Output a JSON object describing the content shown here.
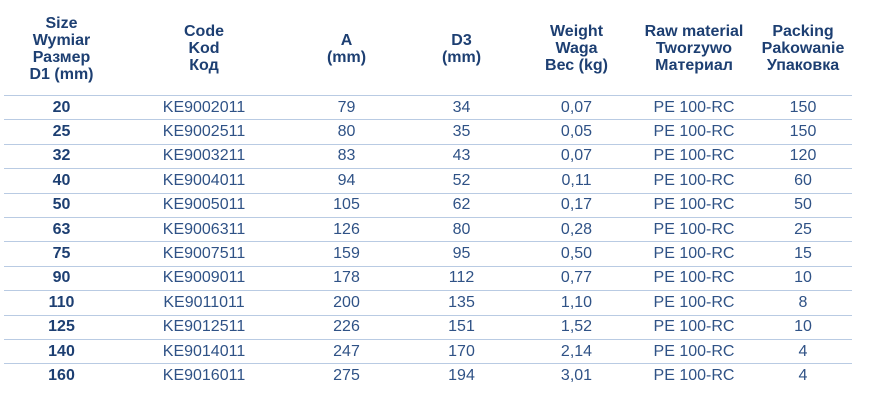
{
  "table": {
    "headers": [
      [
        "Size",
        "Wymiar",
        "Размер",
        "D1 (mm)"
      ],
      [
        "Code",
        "Kod",
        "Код"
      ],
      [
        "A",
        "(mm)"
      ],
      [
        "D3",
        "(mm)"
      ],
      [
        "Weight",
        "Waga",
        "Вес (kg)"
      ],
      [
        "Raw material",
        "Tworzywo",
        "Материал"
      ],
      [
        "Packing",
        "Pakowanie",
        "Упаковка"
      ]
    ],
    "rows": [
      [
        "20",
        "KE9002011",
        "79",
        "34",
        "0,07",
        "PE 100-RC",
        "150"
      ],
      [
        "25",
        "KE9002511",
        "80",
        "35",
        "0,05",
        "PE 100-RC",
        "150"
      ],
      [
        "32",
        "KE9003211",
        "83",
        "43",
        "0,07",
        "PE 100-RC",
        "120"
      ],
      [
        "40",
        "KE9004011",
        "94",
        "52",
        "0,11",
        "PE 100-RC",
        "60"
      ],
      [
        "50",
        "KE9005011",
        "105",
        "62",
        "0,17",
        "PE 100-RC",
        "50"
      ],
      [
        "63",
        "KE9006311",
        "126",
        "80",
        "0,28",
        "PE 100-RC",
        "25"
      ],
      [
        "75",
        "KE9007511",
        "159",
        "95",
        "0,50",
        "PE 100-RC",
        "15"
      ],
      [
        "90",
        "KE9009011",
        "178",
        "112",
        "0,77",
        "PE 100-RC",
        "10"
      ],
      [
        "110",
        "KE9011011",
        "200",
        "135",
        "1,10",
        "PE 100-RC",
        "8"
      ],
      [
        "125",
        "KE9012511",
        "226",
        "151",
        "1,52",
        "PE 100-RC",
        "10"
      ],
      [
        "140",
        "KE9014011",
        "247",
        "170",
        "2,14",
        "PE 100-RC",
        "4"
      ],
      [
        "160",
        "KE9016011",
        "275",
        "194",
        "3,01",
        "PE 100-RC",
        "4"
      ]
    ]
  }
}
